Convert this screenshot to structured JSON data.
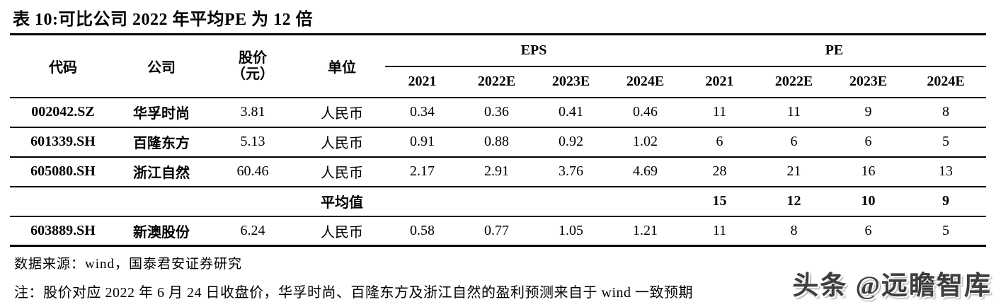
{
  "title": "表 10:可比公司 2022 年平均PE 为 12 倍",
  "table": {
    "headers": {
      "code": "代码",
      "company": "公司",
      "price_line1": "股价",
      "price_line2": "（元）",
      "unit": "单位",
      "eps_group": "EPS",
      "pe_group": "PE",
      "years_eps": [
        "2021",
        "2022E",
        "2023E",
        "2024E"
      ],
      "years_pe": [
        "2021",
        "2022E",
        "2023E",
        "2024E"
      ]
    },
    "rows": [
      {
        "code": "002042.SZ",
        "company": "华孚时尚",
        "price": "3.81",
        "unit": "人民币",
        "eps": [
          "0.34",
          "0.36",
          "0.41",
          "0.46"
        ],
        "pe": [
          "11",
          "11",
          "9",
          "8"
        ]
      },
      {
        "code": "601339.SH",
        "company": "百隆东方",
        "price": "5.13",
        "unit": "人民币",
        "eps": [
          "0.91",
          "0.88",
          "0.92",
          "1.02"
        ],
        "pe": [
          "6",
          "6",
          "6",
          "5"
        ]
      },
      {
        "code": "605080.SH",
        "company": "浙江自然",
        "price": "60.46",
        "unit": "人民币",
        "eps": [
          "2.17",
          "2.91",
          "3.76",
          "4.69"
        ],
        "pe": [
          "28",
          "21",
          "16",
          "13"
        ]
      }
    ],
    "average_row": {
      "label": "平均值",
      "pe": [
        "15",
        "12",
        "10",
        "9"
      ]
    },
    "last_row": {
      "code": "603889.SH",
      "company": "新澳股份",
      "price": "6.24",
      "unit": "人民币",
      "eps": [
        "0.58",
        "0.77",
        "1.05",
        "1.21"
      ],
      "pe": [
        "11",
        "8",
        "6",
        "5"
      ]
    }
  },
  "footer": {
    "source": "数据来源：wind，国泰君安证券研究",
    "note": "注：股价对应 2022 年 6 月 24 日收盘价，华孚时尚、百隆东方及浙江自然的盈利预测来自于 wind 一致预期"
  },
  "watermark": "头条 @远瞻智库",
  "colors": {
    "text": "#000000",
    "watermark": "#3d3d3d",
    "background": "#ffffff"
  }
}
